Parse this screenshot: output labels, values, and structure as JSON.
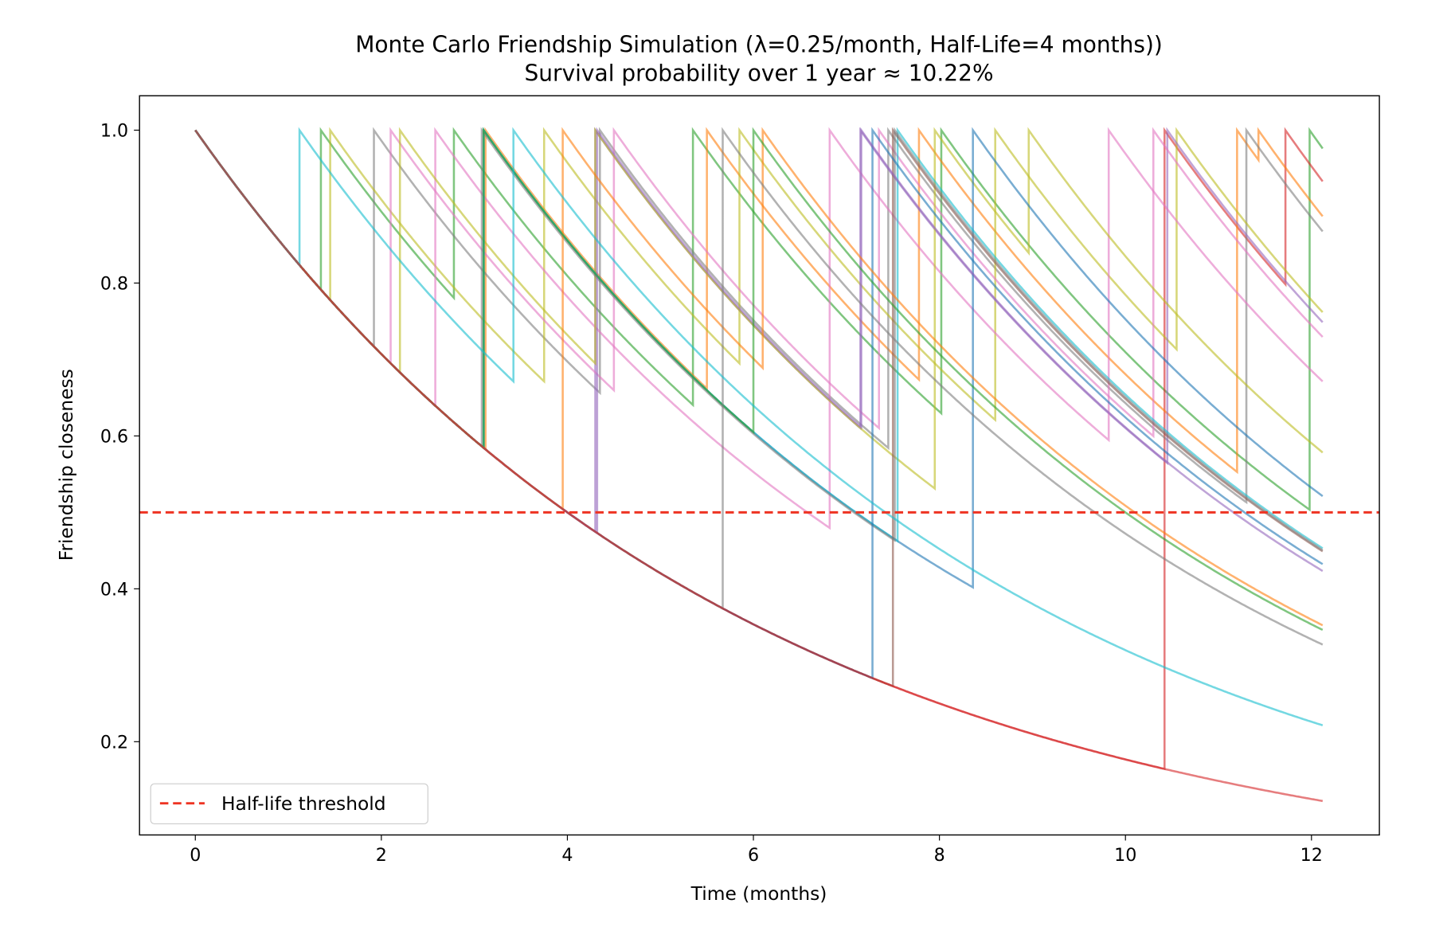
{
  "chart_data": {
    "type": "line",
    "title": "Monte Carlo Friendship Simulation (λ=0.25/month, Half-Life=4 months))",
    "subtitle": "Survival probability over 1 year ≈ 10.22%",
    "xlabel": "Time (months)",
    "ylabel": "Friendship closeness",
    "xlim": [
      -0.6,
      12.73
    ],
    "ylim": [
      0.078,
      1.045
    ],
    "xticks": [
      "0",
      "2",
      "4",
      "6",
      "8",
      "10",
      "12"
    ],
    "yticks": [
      "0.2",
      "0.4",
      "0.6",
      "0.8",
      "1.0"
    ],
    "grid": false,
    "legend": {
      "placement": "lower-left",
      "entries": [
        "Half-life threshold"
      ]
    },
    "threshold": {
      "y": 0.5,
      "label": "Half-life threshold",
      "color": "#ee3322",
      "style": "dashed"
    },
    "half_life_months": 4,
    "time_end": 12.13,
    "series": [
      {
        "color": "#2ca02c",
        "reset_times": [
          1.35,
          2.78,
          5.35,
          8.02,
          11.98
        ]
      },
      {
        "color": "#d62728",
        "reset_times": [
          10.42,
          11.72
        ]
      },
      {
        "color": "#ff7f0e",
        "reset_times": [
          3.12,
          5.5,
          7.78,
          11.2,
          11.43
        ]
      },
      {
        "color": "#7f7f7f",
        "reset_times": [
          1.92,
          4.35,
          7.45,
          11.3
        ]
      },
      {
        "color": "#bcbd22",
        "reset_times": [
          1.45,
          3.75,
          5.85,
          8.6,
          10.55
        ]
      },
      {
        "color": "#9467bd",
        "reset_times": [
          4.3,
          7.15,
          10.45
        ]
      },
      {
        "color": "#e377c2",
        "reset_times": [
          2.1,
          4.5,
          7.35,
          10.3
        ]
      },
      {
        "color": "#e377c2",
        "reset_times": [
          2.58,
          6.82,
          9.82
        ]
      },
      {
        "color": "#bcbd22",
        "reset_times": [
          2.2,
          4.3,
          7.95,
          8.96
        ]
      },
      {
        "color": "#1f77b4",
        "reset_times": [
          3.1,
          8.36
        ]
      },
      {
        "color": "#17becf",
        "reset_times": [
          3.1,
          7.55
        ]
      },
      {
        "color": "#8c564b",
        "reset_times": [
          7.5
        ]
      },
      {
        "color": "#7f7f7f",
        "reset_times": [
          3.08,
          7.52
        ]
      },
      {
        "color": "#1f77b4",
        "reset_times": [
          7.28
        ]
      },
      {
        "color": "#9467bd",
        "reset_times": [
          4.32,
          7.16
        ]
      },
      {
        "color": "#ff7f0e",
        "reset_times": [
          3.95,
          6.1
        ]
      },
      {
        "color": "#2ca02c",
        "reset_times": [
          3.1,
          6.0
        ]
      },
      {
        "color": "#7f7f7f",
        "reset_times": [
          5.67
        ]
      },
      {
        "color": "#17becf",
        "reset_times": [
          1.12,
          3.42
        ]
      },
      {
        "color": "#d62728",
        "reset_times": []
      }
    ]
  }
}
